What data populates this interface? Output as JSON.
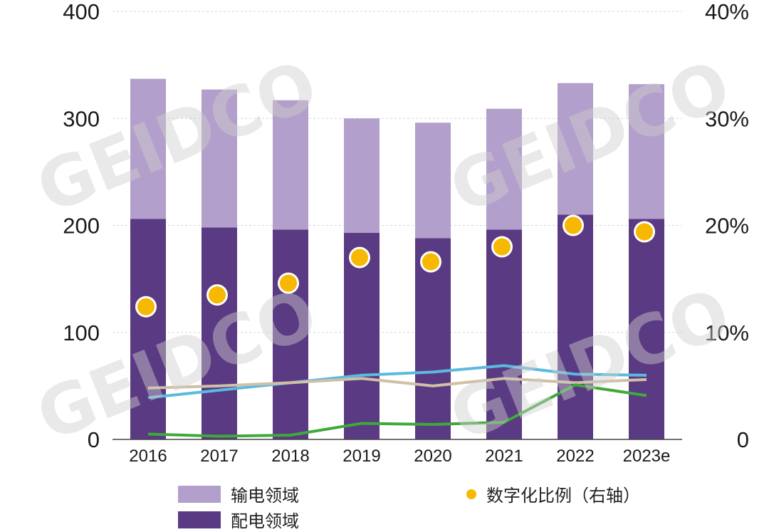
{
  "chart_data": {
    "type": "bar",
    "stacked": true,
    "categories": [
      "2016",
      "2017",
      "2018",
      "2019",
      "2020",
      "2021",
      "2022",
      "2023e"
    ],
    "series": [
      {
        "name": "配电领域",
        "kind": "bar",
        "color": "#5a3a82",
        "values": [
          206,
          198,
          196,
          193,
          188,
          196,
          210,
          206
        ]
      },
      {
        "name": "输电领域",
        "kind": "bar",
        "color": "#b39fcb",
        "values": [
          131,
          129,
          121,
          107,
          108,
          113,
          123,
          126
        ]
      },
      {
        "name": "数字化比例（右轴）",
        "kind": "scatter",
        "axis": "right",
        "color": "#f6b800",
        "values": [
          12.4,
          13.5,
          14.6,
          17.0,
          16.6,
          18.0,
          20.0,
          19.4
        ]
      },
      {
        "name": "",
        "kind": "line",
        "color": "#5cbadf",
        "values": [
          39,
          46,
          53,
          60,
          63,
          69,
          61,
          60
        ]
      },
      {
        "name": "",
        "kind": "line",
        "color": "#cfc0a6",
        "values": [
          48,
          50,
          53,
          57,
          50,
          57,
          53,
          56
        ]
      },
      {
        "name": "",
        "kind": "line",
        "color": "#3fa93a",
        "values": [
          5,
          3,
          4,
          15,
          14,
          16,
          51,
          41
        ]
      }
    ],
    "y_left": {
      "min": 0,
      "max": 400,
      "ticks": [
        "0",
        "100",
        "200",
        "300",
        "400"
      ]
    },
    "y_right": {
      "min": 0,
      "max": 40,
      "ticks": [
        "0",
        "10%",
        "20%",
        "30%",
        "40%"
      ]
    },
    "grid": true,
    "watermark": "GEIDCO",
    "legend": [
      {
        "label": "输电领域",
        "color": "#b39fcb",
        "kind": "bar"
      },
      {
        "label": "配电领域",
        "color": "#5a3a82",
        "kind": "bar"
      },
      {
        "label": "数字化比例（右轴）",
        "color": "#f6b800",
        "kind": "dot"
      }
    ]
  }
}
